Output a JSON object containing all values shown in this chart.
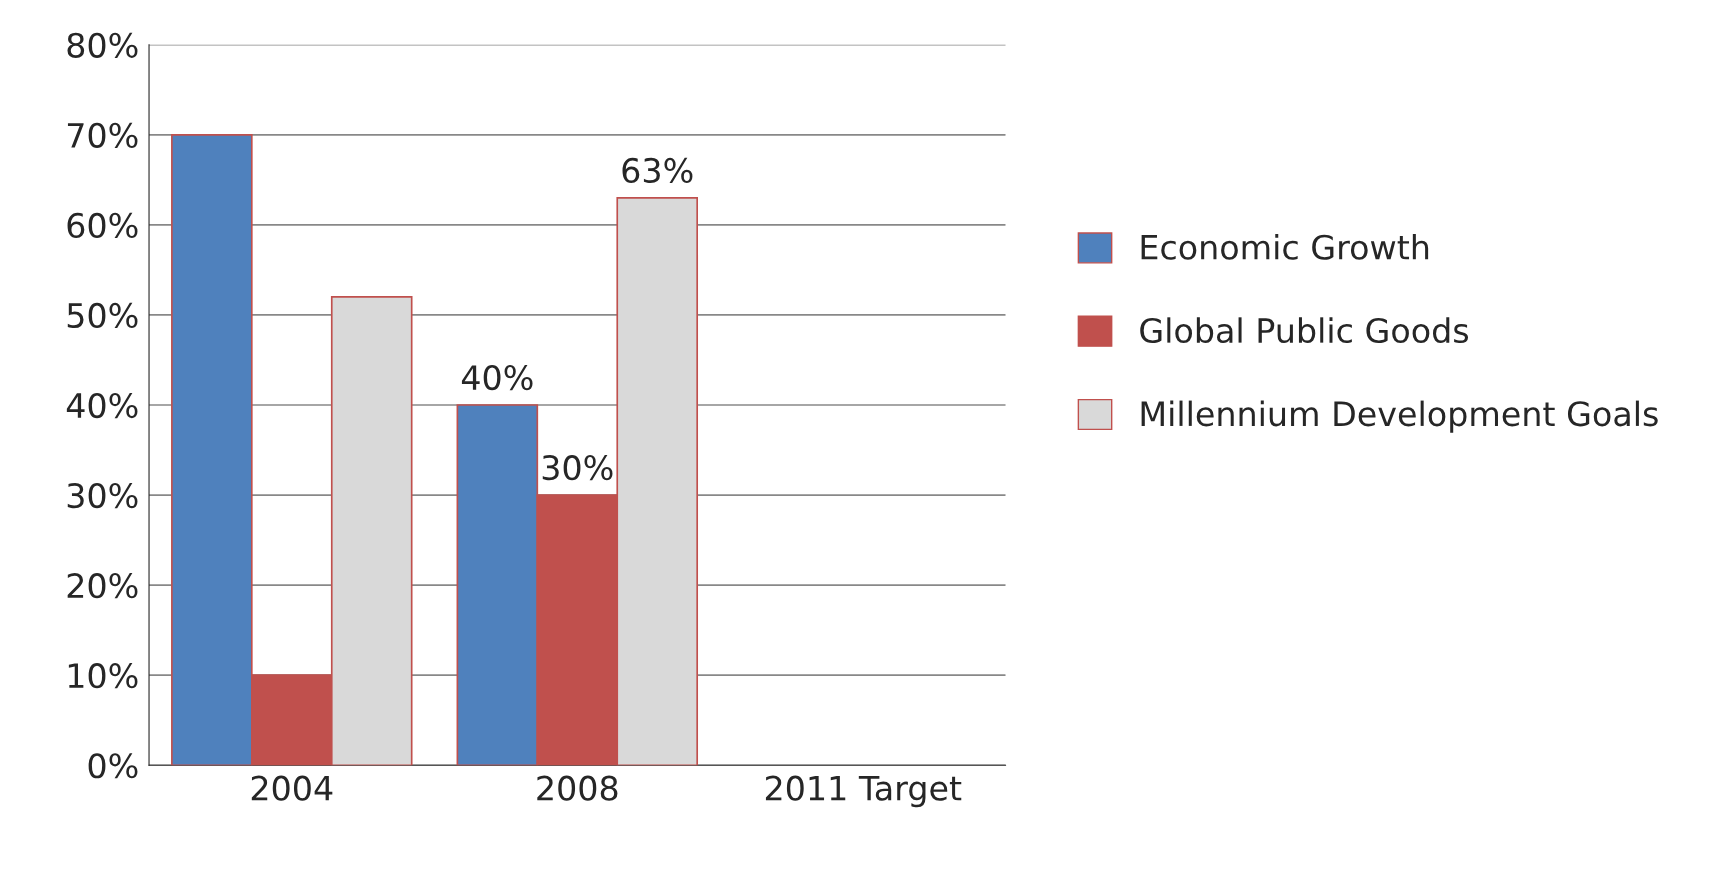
{
  "chart_data": {
    "type": "bar",
    "categories": [
      "2004",
      "2008",
      "2011 Target"
    ],
    "series": [
      {
        "name": "Economic Growth",
        "color": "#4f81bd",
        "values": [
          70,
          40,
          null
        ],
        "value_labels": [
          null,
          "40%",
          null
        ]
      },
      {
        "name": "Global Public Goods",
        "color": "#c0504d",
        "values": [
          10,
          30,
          null
        ],
        "value_labels": [
          null,
          "30%",
          null
        ]
      },
      {
        "name": "Millennium Development Goals",
        "color": "#d9d9d9",
        "values": [
          52,
          63,
          null
        ],
        "value_labels": [
          null,
          "63%",
          null
        ]
      }
    ],
    "ylim": [
      0,
      80
    ],
    "yticks": [
      {
        "value": 0,
        "label": "0%"
      },
      {
        "value": 10,
        "label": "10%"
      },
      {
        "value": 20,
        "label": "20%"
      },
      {
        "value": 30,
        "label": "30%"
      },
      {
        "value": 40,
        "label": "40%"
      },
      {
        "value": 50,
        "label": "50%"
      },
      {
        "value": 60,
        "label": "60%"
      },
      {
        "value": 70,
        "label": "70%"
      },
      {
        "value": 80,
        "label": "80%"
      }
    ],
    "grid": "y",
    "legend": "right"
  }
}
